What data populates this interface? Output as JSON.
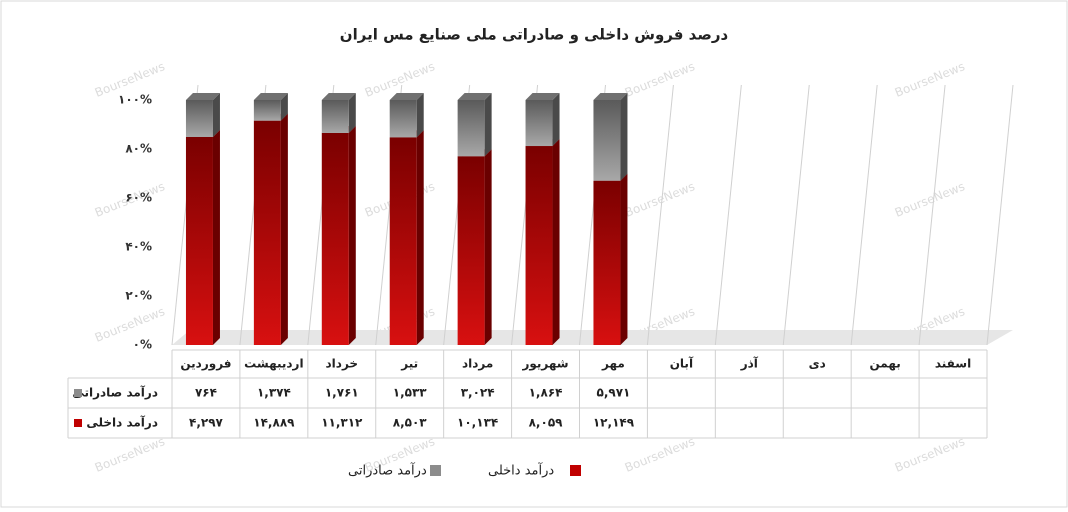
{
  "chart_data": {
    "type": "bar",
    "stacking": "percent",
    "title": "درصد فروش  داخلی و صادراتی ملی صنایع مس ایران",
    "watermark": "BourseNews",
    "categories": [
      "فروردین",
      "اردیبهشت",
      "خرداد",
      "تیر",
      "مرداد",
      "شهریور",
      "مهر",
      "آبان",
      "آذر",
      "دی",
      "بهمن",
      "اسفند"
    ],
    "series": [
      {
        "name": "درآمد داخلی",
        "color": "#c00000",
        "values": [
          4297,
          14889,
          11312,
          8503,
          10134,
          8059,
          12149,
          null,
          null,
          null,
          null,
          null
        ],
        "value_labels": [
          "۴,۲۹۷",
          "۱۴,۸۸۹",
          "۱۱,۳۱۲",
          "۸,۵۰۳",
          "۱۰,۱۳۴",
          "۸,۰۵۹",
          "۱۲,۱۴۹",
          null,
          null,
          null,
          null,
          null
        ]
      },
      {
        "name": "درآمد صادراتی",
        "color": "#8c8c8c",
        "values": [
          764,
          1374,
          1761,
          1533,
          3024,
          1864,
          5971,
          null,
          null,
          null,
          null,
          null
        ],
        "value_labels": [
          "۷۶۴",
          "۱,۳۷۴",
          "۱,۷۶۱",
          "۱,۵۳۳",
          "۳,۰۲۴",
          "۱,۸۶۴",
          "۵,۹۷۱",
          null,
          null,
          null,
          null,
          null
        ]
      }
    ],
    "ylim": [
      0,
      100
    ],
    "yticks": [
      {
        "value": 0,
        "label": "۰%"
      },
      {
        "value": 20,
        "label": "۲۰%"
      },
      {
        "value": 40,
        "label": "۴۰%"
      },
      {
        "value": 60,
        "label": "۶۰%"
      },
      {
        "value": 80,
        "label": "۸۰%"
      },
      {
        "value": 100,
        "label": "۱۰۰%"
      }
    ]
  }
}
